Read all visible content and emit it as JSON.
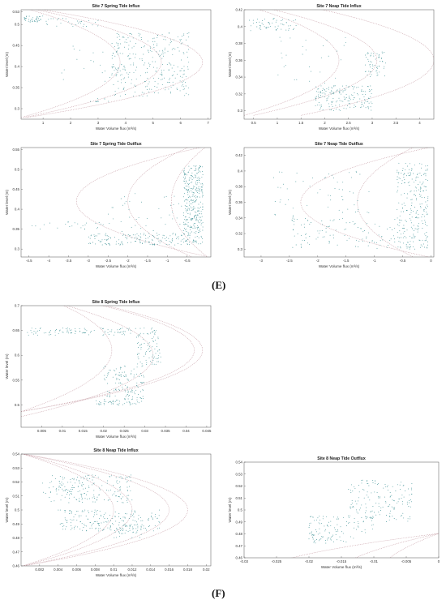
{
  "section_labels": [
    "(E)",
    "(F)"
  ],
  "chart_data": [
    {
      "type": "scatter",
      "title": "Site 7 Spring Tide Influx",
      "xlabel": "Water Volume flux (m³/s)",
      "ylabel": "Water level (m)",
      "xlim": [
        0.2,
        7.1
      ],
      "ylim": [
        0.275,
        0.535
      ],
      "xticks": [
        1,
        2,
        3,
        4,
        5,
        6,
        7
      ],
      "yticks": [
        0.3,
        0.35,
        0.4,
        0.45,
        0.5,
        0.53
      ],
      "point_color": "#3a8f93",
      "curve_color": "#c8a0a8",
      "clusters": [
        {
          "x": [
            0.3,
            1.0
          ],
          "y": [
            0.505,
            0.52
          ],
          "n": 40
        },
        {
          "x": [
            1.0,
            3.0
          ],
          "y": [
            0.495,
            0.515
          ],
          "n": 30
        },
        {
          "x": [
            3.5,
            6.3
          ],
          "y": [
            0.33,
            0.48
          ],
          "n": 300
        },
        {
          "x": [
            2.6,
            3.4
          ],
          "y": [
            0.315,
            0.325
          ],
          "n": 10
        },
        {
          "x": [
            1.5,
            4.5
          ],
          "y": [
            0.36,
            0.45
          ],
          "n": 25
        }
      ],
      "curves": [
        {
          "y_center": 0.41,
          "x_base": 0.3,
          "amp": 5.0
        },
        {
          "y_center": 0.41,
          "x_base": 0.4,
          "amp": 6.4
        },
        {
          "y_center": 0.41,
          "x_base": 0.2,
          "amp": 3.6
        }
      ]
    },
    {
      "type": "scatter",
      "title": "Site 7 Neap Tide Influx",
      "xlabel": "Water Volume flux (m³/s)",
      "ylabel": "Water level (m)",
      "xlim": [
        0.3,
        4.3
      ],
      "ylim": [
        0.29,
        0.42
      ],
      "xticks": [
        0.5,
        1,
        1.5,
        2,
        2.5,
        3,
        3.5,
        4
      ],
      "yticks": [
        0.3,
        0.32,
        0.34,
        0.36,
        0.38,
        0.4,
        0.42
      ],
      "point_color": "#3a8f93",
      "curve_color": "#c8a0a8",
      "clusters": [
        {
          "x": [
            0.4,
            1.4
          ],
          "y": [
            0.395,
            0.41
          ],
          "n": 60
        },
        {
          "x": [
            1.8,
            3.0
          ],
          "y": [
            0.3,
            0.33
          ],
          "n": 180
        },
        {
          "x": [
            2.8,
            3.3
          ],
          "y": [
            0.34,
            0.37
          ],
          "n": 60
        },
        {
          "x": [
            1.0,
            2.5
          ],
          "y": [
            0.33,
            0.39
          ],
          "n": 30
        }
      ],
      "curves": [
        {
          "y_center": 0.36,
          "x_base": 0.5,
          "amp": 2.6
        },
        {
          "y_center": 0.36,
          "x_base": 1.5,
          "amp": 2.8
        },
        {
          "y_center": 0.36,
          "x_base": 0.3,
          "amp": 2.0
        }
      ]
    },
    {
      "type": "scatter",
      "title": "Site 7 Spring Tide Outflux",
      "xlabel": "Water Volume flux (m³/s)",
      "ylabel": "Water level (m)",
      "xlim": [
        -4.7,
        0.1
      ],
      "ylim": [
        0.28,
        0.555
      ],
      "xticks": [
        -4.5,
        -4,
        -3.5,
        -3,
        -2.5,
        -2,
        -1.5,
        -1,
        -0.5
      ],
      "yticks": [
        0.3,
        0.35,
        0.4,
        0.45,
        0.5,
        0.55
      ],
      "point_color": "#3a8f93",
      "curve_color": "#c8a0a8",
      "clusters": [
        {
          "x": [
            -0.6,
            -0.1
          ],
          "y": [
            0.31,
            0.51
          ],
          "n": 350
        },
        {
          "x": [
            -3.0,
            -0.6
          ],
          "y": [
            0.31,
            0.34
          ],
          "n": 150
        },
        {
          "x": [
            -4.5,
            -2.5
          ],
          "y": [
            0.35,
            0.37
          ],
          "n": 25
        },
        {
          "x": [
            -2.5,
            -0.6
          ],
          "y": [
            0.34,
            0.44
          ],
          "n": 40
        }
      ],
      "curves": [
        {
          "y_center": 0.42,
          "x_base": 0.0,
          "amp": -3.3
        },
        {
          "y_center": 0.42,
          "x_base": -0.4,
          "amp": -1.6
        },
        {
          "y_center": 0.42,
          "x_base": 0.0,
          "amp": -0.9
        }
      ]
    },
    {
      "type": "scatter",
      "title": "Site 7 Neap Tide Outflux",
      "xlabel": "Water Volume flux (m³/s)",
      "ylabel": "Water level (m)",
      "xlim": [
        -3.3,
        0.05
      ],
      "ylim": [
        0.29,
        0.43
      ],
      "xticks": [
        -3,
        -2.5,
        -2,
        -1.5,
        -1,
        -0.5,
        0
      ],
      "yticks": [
        0.3,
        0.32,
        0.34,
        0.36,
        0.38,
        0.4,
        0.42
      ],
      "point_color": "#3a8f93",
      "curve_color": "#c8a0a8",
      "clusters": [
        {
          "x": [
            -0.6,
            -0.05
          ],
          "y": [
            0.3,
            0.41
          ],
          "n": 250
        },
        {
          "x": [
            -2.5,
            -0.5
          ],
          "y": [
            0.3,
            0.34
          ],
          "n": 120
        },
        {
          "x": [
            -2.8,
            -1.0
          ],
          "y": [
            0.34,
            0.4
          ],
          "n": 60
        }
      ],
      "curves": [
        {
          "y_center": 0.36,
          "x_base": 0.0,
          "amp": -2.3
        },
        {
          "y_center": 0.36,
          "x_base": -0.3,
          "amp": -1.0
        }
      ]
    },
    {
      "type": "scatter",
      "title": "Site 8 Spring Tide Influx",
      "xlabel": "Water Volume flux (m³/s)",
      "ylabel": "Water level (m)",
      "xlim": [
        0.0,
        0.046
      ],
      "ylim": [
        0.455,
        0.7
      ],
      "xticks": [
        0.005,
        0.01,
        0.015,
        0.02,
        0.025,
        0.03,
        0.035,
        0.04,
        0.045
      ],
      "yticks": [
        0.5,
        0.55,
        0.6,
        0.65,
        0.7
      ],
      "point_color": "#3a8f93",
      "curve_color": "#c8a0a8",
      "clusters": [
        {
          "x": [
            0.001,
            0.033
          ],
          "y": [
            0.64,
            0.655
          ],
          "n": 120
        },
        {
          "x": [
            0.028,
            0.034
          ],
          "y": [
            0.58,
            0.64
          ],
          "n": 70
        },
        {
          "x": [
            0.02,
            0.03
          ],
          "y": [
            0.5,
            0.58
          ],
          "n": 150
        },
        {
          "x": [
            0.018,
            0.024
          ],
          "y": [
            0.5,
            0.51
          ],
          "n": 30
        }
      ],
      "curves": [
        {
          "y_center": 0.61,
          "x_base": 0.0,
          "amp": 0.042
        },
        {
          "y_center": 0.61,
          "x_base": 0.0,
          "amp": 0.044
        },
        {
          "y_center": 0.6,
          "x_base": 0.0,
          "amp": 0.032
        },
        {
          "y_center": 0.61,
          "x_base": 0.0,
          "amp": 0.022
        }
      ]
    },
    {
      "type": "scatter",
      "title": "Site 8 Neap Tide Influx",
      "xlabel": "Water Volume flux (m³/s)",
      "ylabel": "Water level (m)",
      "xlim": [
        0.0,
        0.0205
      ],
      "ylim": [
        0.46,
        0.54
      ],
      "xticks": [
        0.002,
        0.004,
        0.006,
        0.008,
        0.01,
        0.012,
        0.014,
        0.016,
        0.018,
        0.02
      ],
      "yticks": [
        0.46,
        0.47,
        0.48,
        0.49,
        0.5,
        0.51,
        0.52,
        0.53,
        0.54
      ],
      "point_color": "#3a8f93",
      "curve_color": "#c8a0a8",
      "clusters": [
        {
          "x": [
            0.003,
            0.012
          ],
          "y": [
            0.505,
            0.525
          ],
          "n": 180
        },
        {
          "x": [
            0.004,
            0.015
          ],
          "y": [
            0.485,
            0.5
          ],
          "n": 200
        },
        {
          "x": [
            0.01,
            0.013
          ],
          "y": [
            0.48,
            0.49
          ],
          "n": 40
        },
        {
          "x": [
            0.002,
            0.006
          ],
          "y": [
            0.51,
            0.52
          ],
          "n": 20
        }
      ],
      "curves": [
        {
          "y_center": 0.5,
          "x_base": 0.0,
          "amp": 0.018
        },
        {
          "y_center": 0.5,
          "x_base": 0.0,
          "amp": 0.016
        },
        {
          "y_center": 0.5,
          "x_base": 0.0,
          "amp": 0.012
        },
        {
          "y_center": 0.5,
          "x_base": 0.0,
          "amp": 0.01
        }
      ]
    },
    {
      "type": "scatter",
      "title": "Site 8 Neap Tide Outflux",
      "xlabel": "Water Volume flux (m³/s)",
      "ylabel": "Water level (m)",
      "xlim": [
        -0.03,
        0.0
      ],
      "ylim": [
        0.46,
        0.54
      ],
      "xticks": [
        -0.03,
        -0.025,
        -0.02,
        -0.015,
        -0.01,
        -0.005,
        0
      ],
      "yticks": [
        0.46,
        0.47,
        0.48,
        0.49,
        0.5,
        0.51,
        0.52,
        0.53,
        0.54
      ],
      "point_color": "#3a8f93",
      "curve_color": "#c8a0a8",
      "clusters": [
        {
          "x": [
            -0.014,
            -0.004
          ],
          "y": [
            0.49,
            0.525
          ],
          "n": 160
        },
        {
          "x": [
            -0.02,
            -0.01
          ],
          "y": [
            0.48,
            0.495
          ],
          "n": 80
        },
        {
          "x": [
            -0.02,
            -0.013
          ],
          "y": [
            0.472,
            0.48
          ],
          "n": 40
        }
      ],
      "curves": [
        {
          "y_center": 0.44,
          "x_base": 0.0,
          "amp": -0.03
        },
        {
          "y_center": 0.44,
          "x_base": 0.0,
          "amp": -0.017
        },
        {
          "y_center": 0.44,
          "x_base": 0.0,
          "amp": -0.01
        }
      ]
    }
  ]
}
